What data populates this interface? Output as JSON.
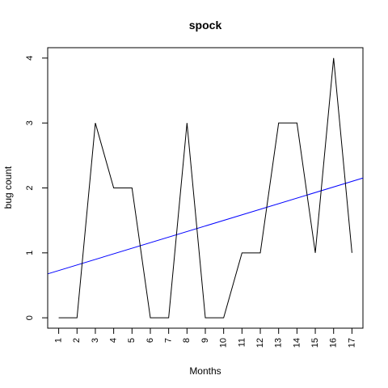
{
  "chart_data": {
    "type": "line",
    "title": "spock",
    "xlabel": "Months",
    "ylabel": "bug count",
    "xlim": [
      0.4,
      17.6
    ],
    "ylim": [
      -0.16,
      4.16
    ],
    "x": [
      1,
      2,
      3,
      4,
      5,
      6,
      7,
      8,
      9,
      10,
      11,
      12,
      13,
      14,
      15,
      16,
      17
    ],
    "x_tick_labels": [
      "1",
      "2",
      "3",
      "4",
      "5",
      "6",
      "7",
      "8",
      "9",
      "10",
      "11",
      "12",
      "13",
      "14",
      "15",
      "16",
      "17"
    ],
    "y_ticks": [
      0,
      1,
      2,
      3,
      4
    ],
    "y_tick_labels": [
      "0",
      "1",
      "2",
      "3",
      "4"
    ],
    "series": [
      {
        "values": [
          0,
          0,
          3,
          2,
          2,
          0,
          0,
          3,
          0,
          0,
          1,
          1,
          3,
          3,
          1,
          4,
          1
        ],
        "color": "#000000"
      }
    ],
    "trend_line": {
      "intercept": 0.642,
      "slope": 0.0858,
      "color": "#0000ff"
    },
    "grid": false,
    "legend": "none"
  }
}
